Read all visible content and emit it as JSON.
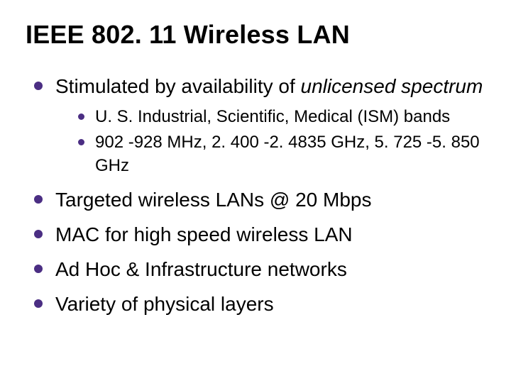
{
  "colors": {
    "bullet": "#4b2e83",
    "text": "#000000",
    "background": "#ffffff"
  },
  "typography": {
    "title_fontsize": 36,
    "title_weight": "bold",
    "level1_fontsize": 28,
    "level2_fontsize": 24,
    "font_family": "Arial"
  },
  "title": "IEEE 802. 11 Wireless LAN",
  "bullets": [
    {
      "pre": "Stimulated by availability of ",
      "em": "unlicensed spectrum",
      "children": [
        "U. S. Industrial, Scientific, Medical (ISM) bands",
        "902 -928 MHz, 2. 400 -2. 4835 GHz, 5. 725 -5. 850 GHz"
      ]
    },
    {
      "text": "Targeted wireless LANs @ 20 Mbps"
    },
    {
      "text": "MAC for high speed wireless LAN"
    },
    {
      "text": "Ad Hoc & Infrastructure networks"
    },
    {
      "text": "Variety of physical layers"
    }
  ]
}
